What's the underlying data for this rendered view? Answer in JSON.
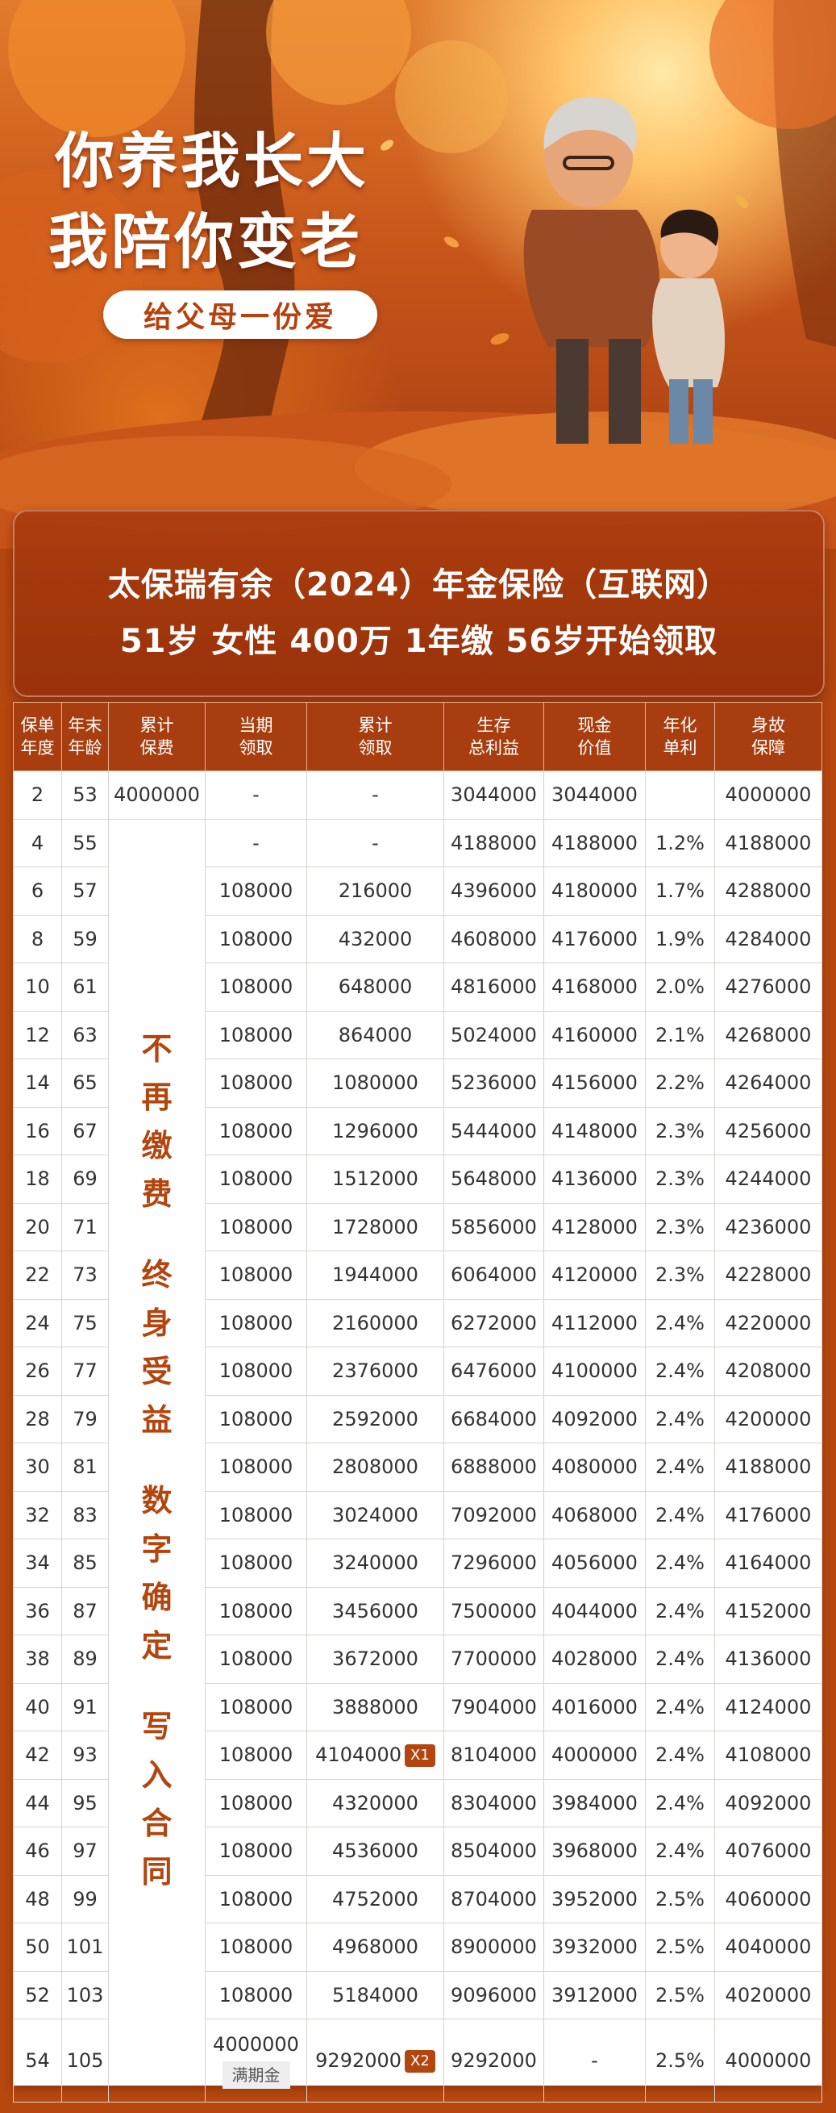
{
  "hero": {
    "slogan_line1": "你养我长大",
    "slogan_line2": "我陪你变老",
    "sub_banner": "给父母一份爱"
  },
  "title": {
    "product": "太保瑞有余（2024）年金保险（互联网）",
    "summary": "51岁 女性 400万 1年缴 56岁开始领取"
  },
  "table": {
    "headers": [
      {
        "l1": "保单",
        "l2": "年度"
      },
      {
        "l1": "年末",
        "l2": "年龄"
      },
      {
        "l1": "累计",
        "l2": "保费"
      },
      {
        "l1": "当期",
        "l2": "领取"
      },
      {
        "l1": "累计",
        "l2": "领取"
      },
      {
        "l1": "生存",
        "l2": "总利益"
      },
      {
        "l1": "现金",
        "l2": "价值"
      },
      {
        "l1": "年化",
        "l2": "单利"
      },
      {
        "l1": "身故",
        "l2": "保障"
      }
    ],
    "first_row_premium": "4000000",
    "merged_note_groups": [
      [
        "不",
        "再",
        "缴",
        "费"
      ],
      [
        "终",
        "身",
        "受",
        "益"
      ],
      [
        "数",
        "字",
        "确",
        "定"
      ],
      [
        "写",
        "入",
        "合",
        "同"
      ]
    ],
    "rows": [
      {
        "year": "2",
        "age": "53",
        "period": "-",
        "cumulative": "-",
        "total": "3044000",
        "cash": "3044000",
        "rate": "",
        "death": "4000000"
      },
      {
        "year": "4",
        "age": "55",
        "period": "-",
        "cumulative": "-",
        "total": "4188000",
        "cash": "4188000",
        "rate": "1.2%",
        "death": "4188000"
      },
      {
        "year": "6",
        "age": "57",
        "period": "108000",
        "cumulative": "216000",
        "total": "4396000",
        "cash": "4180000",
        "rate": "1.7%",
        "death": "4288000"
      },
      {
        "year": "8",
        "age": "59",
        "period": "108000",
        "cumulative": "432000",
        "total": "4608000",
        "cash": "4176000",
        "rate": "1.9%",
        "death": "4284000"
      },
      {
        "year": "10",
        "age": "61",
        "period": "108000",
        "cumulative": "648000",
        "total": "4816000",
        "cash": "4168000",
        "rate": "2.0%",
        "death": "4276000"
      },
      {
        "year": "12",
        "age": "63",
        "period": "108000",
        "cumulative": "864000",
        "total": "5024000",
        "cash": "4160000",
        "rate": "2.1%",
        "death": "4268000"
      },
      {
        "year": "14",
        "age": "65",
        "period": "108000",
        "cumulative": "1080000",
        "total": "5236000",
        "cash": "4156000",
        "rate": "2.2%",
        "death": "4264000"
      },
      {
        "year": "16",
        "age": "67",
        "period": "108000",
        "cumulative": "1296000",
        "total": "5444000",
        "cash": "4148000",
        "rate": "2.3%",
        "death": "4256000"
      },
      {
        "year": "18",
        "age": "69",
        "period": "108000",
        "cumulative": "1512000",
        "total": "5648000",
        "cash": "4136000",
        "rate": "2.3%",
        "death": "4244000"
      },
      {
        "year": "20",
        "age": "71",
        "period": "108000",
        "cumulative": "1728000",
        "total": "5856000",
        "cash": "4128000",
        "rate": "2.3%",
        "death": "4236000"
      },
      {
        "year": "22",
        "age": "73",
        "period": "108000",
        "cumulative": "1944000",
        "total": "6064000",
        "cash": "4120000",
        "rate": "2.3%",
        "death": "4228000"
      },
      {
        "year": "24",
        "age": "75",
        "period": "108000",
        "cumulative": "2160000",
        "total": "6272000",
        "cash": "4112000",
        "rate": "2.4%",
        "death": "4220000"
      },
      {
        "year": "26",
        "age": "77",
        "period": "108000",
        "cumulative": "2376000",
        "total": "6476000",
        "cash": "4100000",
        "rate": "2.4%",
        "death": "4208000"
      },
      {
        "year": "28",
        "age": "79",
        "period": "108000",
        "cumulative": "2592000",
        "total": "6684000",
        "cash": "4092000",
        "rate": "2.4%",
        "death": "4200000"
      },
      {
        "year": "30",
        "age": "81",
        "period": "108000",
        "cumulative": "2808000",
        "total": "6888000",
        "cash": "4080000",
        "rate": "2.4%",
        "death": "4188000"
      },
      {
        "year": "32",
        "age": "83",
        "period": "108000",
        "cumulative": "3024000",
        "total": "7092000",
        "cash": "4068000",
        "rate": "2.4%",
        "death": "4176000"
      },
      {
        "year": "34",
        "age": "85",
        "period": "108000",
        "cumulative": "3240000",
        "total": "7296000",
        "cash": "4056000",
        "rate": "2.4%",
        "death": "4164000"
      },
      {
        "year": "36",
        "age": "87",
        "period": "108000",
        "cumulative": "3456000",
        "total": "7500000",
        "cash": "4044000",
        "rate": "2.4%",
        "death": "4152000"
      },
      {
        "year": "38",
        "age": "89",
        "period": "108000",
        "cumulative": "3672000",
        "total": "7700000",
        "cash": "4028000",
        "rate": "2.4%",
        "death": "4136000"
      },
      {
        "year": "40",
        "age": "91",
        "period": "108000",
        "cumulative": "3888000",
        "total": "7904000",
        "cash": "4016000",
        "rate": "2.4%",
        "death": "4124000"
      },
      {
        "year": "42",
        "age": "93",
        "period": "108000",
        "cumulative": "4104000",
        "badge": "X1",
        "total": "8104000",
        "cash": "4000000",
        "rate": "2.4%",
        "death": "4108000"
      },
      {
        "year": "44",
        "age": "95",
        "period": "108000",
        "cumulative": "4320000",
        "total": "8304000",
        "cash": "3984000",
        "rate": "2.4%",
        "death": "4092000"
      },
      {
        "year": "46",
        "age": "97",
        "period": "108000",
        "cumulative": "4536000",
        "total": "8504000",
        "cash": "3968000",
        "rate": "2.4%",
        "death": "4076000"
      },
      {
        "year": "48",
        "age": "99",
        "period": "108000",
        "cumulative": "4752000",
        "total": "8704000",
        "cash": "3952000",
        "rate": "2.5%",
        "death": "4060000"
      },
      {
        "year": "50",
        "age": "101",
        "period": "108000",
        "cumulative": "4968000",
        "total": "8900000",
        "cash": "3932000",
        "rate": "2.5%",
        "death": "4040000"
      },
      {
        "year": "52",
        "age": "103",
        "period": "108000",
        "cumulative": "5184000",
        "total": "9096000",
        "cash": "3912000",
        "rate": "2.5%",
        "death": "4020000"
      },
      {
        "year": "54",
        "age": "105",
        "period": "4000000",
        "period_tag": "满期金",
        "cumulative": "9292000",
        "badge": "X2",
        "total": "9292000",
        "cash": "-",
        "rate": "2.5%",
        "death": "4000000"
      }
    ]
  },
  "colors": {
    "accent": "#a83e10",
    "highlight_text": "#b3450f",
    "page_bg": "#b5470f"
  }
}
